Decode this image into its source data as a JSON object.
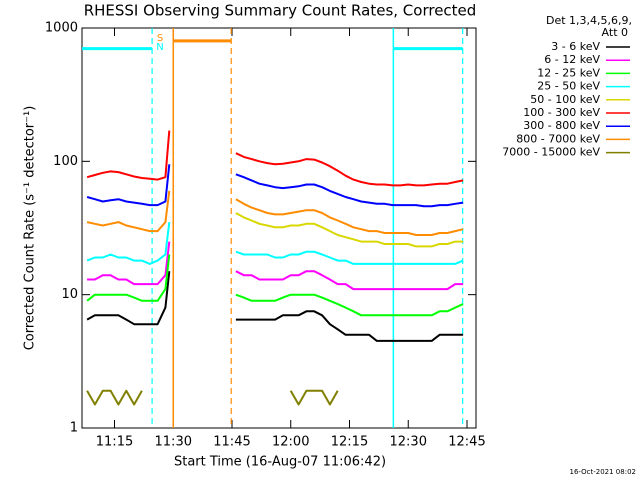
{
  "chart_data": {
    "type": "line",
    "title": "RHESSI Observing Summary Count Rates, Corrected",
    "x_label": "Start Time (16-Aug-07 11:06:42)",
    "y_label": "Corrected Count Rate (s⁻¹ detector⁻¹)",
    "legend_title": [
      "Det 1,3,4,5,6,9,",
      "Att 0"
    ],
    "footer": "16-Oct-2021 08:02",
    "log_y": true,
    "xlim": [
      6.7,
      107.3
    ],
    "ylim": [
      1,
      1000
    ],
    "xticks": [
      {
        "value": 15,
        "label": "11:15"
      },
      {
        "value": 30,
        "label": "11:30"
      },
      {
        "value": 45,
        "label": "11:45"
      },
      {
        "value": 60,
        "label": "12:00"
      },
      {
        "value": 75,
        "label": "12:15"
      },
      {
        "value": 90,
        "label": "12:30"
      },
      {
        "value": 105,
        "label": "12:45"
      }
    ],
    "yticks": [
      1,
      10,
      100,
      1000
    ],
    "x": [
      8,
      10,
      12,
      14,
      16,
      18,
      20,
      22,
      24,
      26,
      28,
      29,
      36,
      46,
      48,
      50,
      52,
      54,
      56,
      58,
      60,
      62,
      64,
      66,
      68,
      70,
      72,
      74,
      76,
      78,
      80,
      82,
      84,
      86,
      88,
      90,
      92,
      94,
      96,
      98,
      100,
      102,
      104
    ],
    "series": [
      {
        "name": "3 - 6 keV",
        "color": "#000000",
        "values": [
          6.5,
          7,
          7,
          7,
          7,
          6.5,
          6,
          6,
          6,
          6,
          8,
          15,
          null,
          6.5,
          6.5,
          6.5,
          6.5,
          6.5,
          6.5,
          7,
          7,
          7,
          7.5,
          7.5,
          7,
          6,
          5.5,
          5,
          5,
          5,
          5,
          4.5,
          4.5,
          4.5,
          4.5,
          4.5,
          4.5,
          4.5,
          4.5,
          5,
          5,
          5,
          5
        ]
      },
      {
        "name": "6 - 12 keV",
        "color": "#ff00ff",
        "values": [
          13,
          13,
          14,
          14,
          13,
          13,
          12,
          12,
          12,
          12,
          14,
          25,
          null,
          15,
          14,
          14,
          13,
          13,
          13,
          13,
          14,
          14,
          15,
          15,
          14,
          13,
          12,
          12,
          11,
          11,
          11,
          11,
          11,
          11,
          11,
          11,
          11,
          11,
          11,
          11,
          11,
          12,
          12
        ]
      },
      {
        "name": "12 - 25 keV",
        "color": "#00ff00",
        "values": [
          9,
          10,
          10,
          10,
          10,
          10,
          9.5,
          9,
          9,
          9,
          11,
          20,
          null,
          10,
          9.5,
          9,
          9,
          9,
          9,
          9.5,
          10,
          10,
          10,
          10,
          9.5,
          9,
          8.5,
          8,
          7.5,
          7,
          7,
          7,
          7,
          7,
          7,
          7,
          7,
          7,
          7,
          7.5,
          7.5,
          8,
          8.5
        ]
      },
      {
        "name": "25 - 50 keV",
        "color": "#00ffff",
        "values": [
          18,
          19,
          19,
          20,
          19,
          19,
          18,
          18,
          17,
          18,
          20,
          35,
          null,
          21,
          20,
          20,
          20,
          20,
          19,
          19,
          20,
          20,
          21,
          21,
          20,
          19,
          18,
          18,
          17,
          17,
          17,
          17,
          17,
          17,
          17,
          17,
          17,
          17,
          17,
          17,
          17,
          17,
          18
        ]
      },
      {
        "name": "50 - 100 keV",
        "color": "#d8d800",
        "values": [
          null,
          null,
          null,
          null,
          null,
          null,
          null,
          null,
          null,
          null,
          null,
          null,
          null,
          41,
          38,
          36,
          34,
          33,
          32,
          32,
          33,
          33,
          34,
          34,
          32,
          30,
          28,
          27,
          26,
          25,
          25,
          25,
          24,
          24,
          24,
          24,
          23,
          23,
          23,
          24,
          24,
          25,
          25
        ]
      },
      {
        "name": "100 - 300 keV",
        "color": "#ff0000",
        "values": [
          76,
          79,
          82,
          84,
          83,
          80,
          77,
          75,
          74,
          73,
          76,
          170,
          null,
          115,
          108,
          104,
          100,
          97,
          95,
          96,
          98,
          100,
          104,
          103,
          98,
          92,
          85,
          78,
          73,
          70,
          68,
          67,
          67,
          66,
          66,
          67,
          66,
          66,
          67,
          68,
          68,
          70,
          72
        ]
      },
      {
        "name": "300 - 800 keV",
        "color": "#0000ff",
        "values": [
          54,
          52,
          50,
          51,
          52,
          50,
          49,
          48,
          47,
          47,
          50,
          95,
          null,
          80,
          76,
          72,
          68,
          66,
          64,
          63,
          64,
          65,
          67,
          67,
          64,
          60,
          57,
          54,
          52,
          50,
          49,
          48,
          48,
          47,
          47,
          47,
          47,
          46,
          46,
          47,
          47,
          48,
          49
        ]
      },
      {
        "name": "800 - 7000 keV",
        "color": "#ff8c00",
        "values": [
          35,
          34,
          33,
          34,
          35,
          33,
          32,
          31,
          30,
          30,
          35,
          60,
          null,
          52,
          48,
          45,
          43,
          41,
          40,
          40,
          41,
          42,
          43,
          43,
          41,
          38,
          36,
          34,
          32,
          31,
          30,
          30,
          29,
          29,
          29,
          29,
          28,
          28,
          28,
          29,
          29,
          30,
          31
        ]
      },
      {
        "name": "7000 - 15000 keV",
        "color": "#808000",
        "values": [
          1.9,
          1.5,
          1.9,
          1.9,
          1.5,
          1.9,
          1.5,
          1.9,
          null,
          null,
          null,
          null,
          null,
          null,
          null,
          null,
          null,
          null,
          null,
          null,
          1.9,
          1.5,
          1.9,
          1.9,
          1.9,
          1.5,
          1.9,
          null,
          null,
          null,
          null,
          null,
          null,
          null,
          null,
          null,
          null,
          null,
          null,
          null,
          null,
          null,
          null
        ]
      }
    ],
    "flags": [
      {
        "label": "S",
        "color": "#ff8c00",
        "level": 800,
        "intervals": [
          [
            30,
            44.8
          ]
        ]
      },
      {
        "label": "N",
        "color": "#00ffff",
        "level": 700,
        "intervals": [
          [
            6.7,
            24.6
          ],
          [
            86.2,
            103.9
          ]
        ]
      }
    ]
  }
}
